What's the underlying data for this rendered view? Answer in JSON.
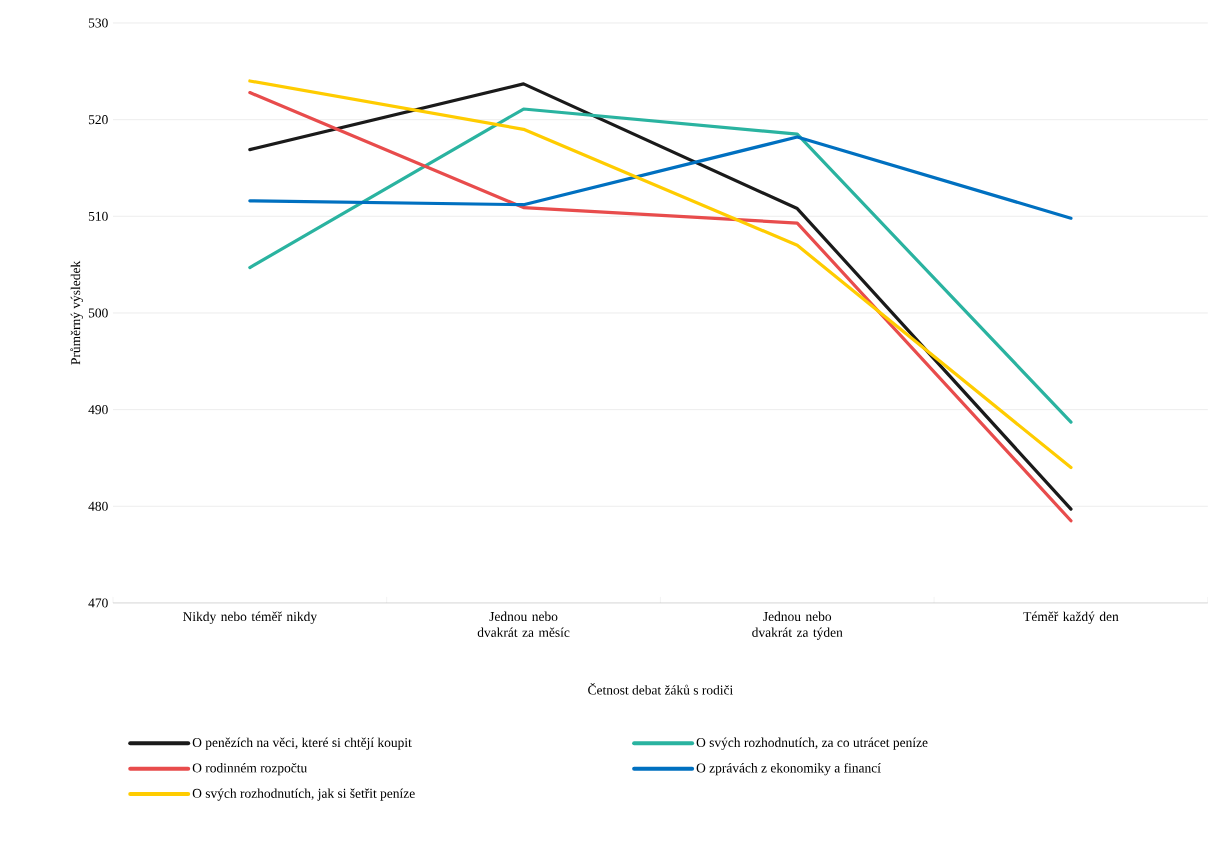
{
  "chart_data": {
    "type": "line",
    "xlabel": "Četnost debat žáků s rodiči",
    "ylabel": "Průměrný výsledek",
    "categories": [
      "Nikdy nebo téměř nikdy",
      "Jednou nebo dvakrát za měsíc",
      "Jednou nebo dvakrát za týden",
      "Téměř každý den"
    ],
    "series": [
      {
        "name": "O penězích na věci, které si chtějí koupit",
        "color": "#1a1a1a",
        "values": [
          516.9,
          523.7,
          510.8,
          479.7
        ]
      },
      {
        "name": "O svých rozhodnutích, za co utrácet peníze",
        "color": "#2ab3a0",
        "values": [
          504.7,
          521.1,
          518.5,
          488.7
        ]
      },
      {
        "name": "O rodinném rozpočtu",
        "color": "#e84c4c",
        "values": [
          522.8,
          510.9,
          509.3,
          478.5
        ]
      },
      {
        "name": "O zprávách z ekonomiky a financí",
        "color": "#0070c0",
        "values": [
          511.6,
          511.2,
          518.2,
          509.8
        ]
      },
      {
        "name": "O svých rozhodnutích, jak si šetřit peníze",
        "color": "#ffcc00",
        "values": [
          524.0,
          519.0,
          507.0,
          484.0
        ]
      }
    ],
    "ylim": [
      470,
      530
    ],
    "yticks": [
      470,
      480,
      490,
      500,
      510,
      520,
      530
    ],
    "grid": "y",
    "legend": "bottom"
  }
}
